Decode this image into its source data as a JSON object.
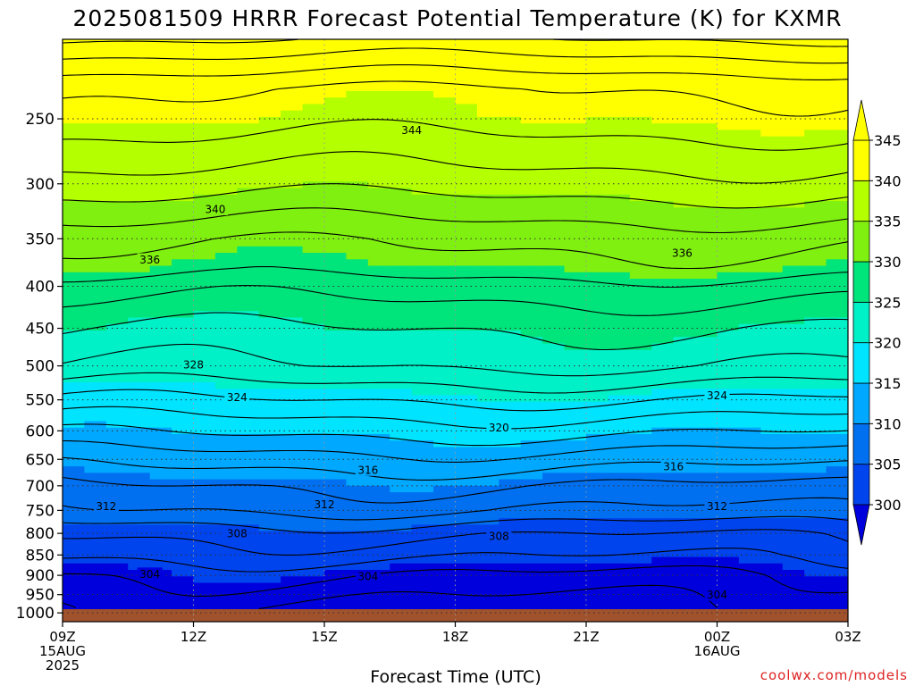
{
  "chart_data": {
    "type": "heatmap",
    "title": "2025081509 HRRR Forecast Potential Temperature (K) for KXMR",
    "xlabel": "Forecast Time (UTC)",
    "ylabel": "",
    "credit": "coolwx.com/models",
    "y_axis": {
      "unit": "hPa",
      "scale": "log",
      "inverted": true,
      "range": [
        200,
        1025
      ],
      "ticks": [
        250,
        300,
        350,
        400,
        450,
        500,
        550,
        600,
        650,
        700,
        750,
        800,
        850,
        900,
        950,
        1000
      ],
      "tick_labels": [
        "250",
        "300",
        "350",
        "400",
        "450",
        "500",
        "550",
        "600",
        "650",
        "700",
        "750",
        "800",
        "850",
        "900",
        "950",
        "1000"
      ]
    },
    "x_axis": {
      "unit": "hours",
      "range": [
        0,
        18
      ],
      "ticks": [
        0,
        3,
        6,
        9,
        12,
        15,
        18
      ],
      "tick_labels": [
        [
          "09Z",
          "15AUG",
          "2025"
        ],
        [
          "12Z"
        ],
        [
          "15Z"
        ],
        [
          "18Z"
        ],
        [
          "21Z"
        ],
        [
          "00Z",
          "16AUG"
        ],
        [
          "03Z"
        ]
      ]
    },
    "colorbar": {
      "levels": [
        300,
        305,
        310,
        315,
        320,
        325,
        330,
        335,
        340,
        345
      ],
      "labels": [
        "300",
        "305",
        "310",
        "315",
        "320",
        "325",
        "330",
        "335",
        "340",
        "345"
      ],
      "colors": [
        "#0000dd",
        "#0044ee",
        "#0070f0",
        "#00a8ff",
        "#00e4ff",
        "#00f0c8",
        "#00e47c",
        "#80f010",
        "#b4ff00",
        "#ffff00"
      ],
      "extend": "both"
    },
    "contour_interval": 2,
    "contour_labels": [
      {
        "value": "344",
        "x": 8.0,
        "p": 258
      },
      {
        "value": "340",
        "x": 3.5,
        "p": 322
      },
      {
        "value": "336",
        "x": 2.0,
        "p": 371
      },
      {
        "value": "336",
        "x": 14.2,
        "p": 364
      },
      {
        "value": "328",
        "x": 3.0,
        "p": 498
      },
      {
        "value": "324",
        "x": 4.0,
        "p": 546
      },
      {
        "value": "324",
        "x": 15.0,
        "p": 543
      },
      {
        "value": "320",
        "x": 10.0,
        "p": 594
      },
      {
        "value": "316",
        "x": 7.0,
        "p": 669
      },
      {
        "value": "316",
        "x": 14.0,
        "p": 663
      },
      {
        "value": "312",
        "x": 1.0,
        "p": 741
      },
      {
        "value": "312",
        "x": 6.0,
        "p": 737
      },
      {
        "value": "312",
        "x": 15.0,
        "p": 741
      },
      {
        "value": "308",
        "x": 4.0,
        "p": 800
      },
      {
        "value": "308",
        "x": 10.0,
        "p": 806
      },
      {
        "value": "304",
        "x": 2.0,
        "p": 896
      },
      {
        "value": "304",
        "x": 7.0,
        "p": 902
      },
      {
        "value": "304",
        "x": 15.0,
        "p": 950
      }
    ],
    "grid": true
  }
}
